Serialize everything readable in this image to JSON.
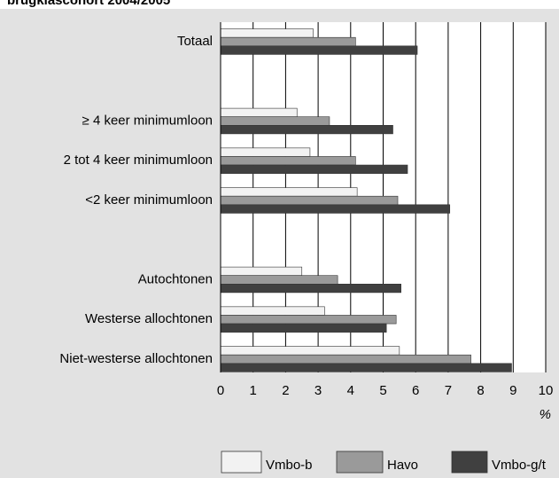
{
  "chart_data": {
    "type": "bar",
    "orientation": "horizontal",
    "title": "brugklascohort 2004/2005",
    "categories": [
      "Totaal",
      null,
      "≥ 4 keer minimumloon",
      "2 tot 4 keer minimumloon",
      "<2 keer minimumloon",
      null,
      "Autochtonen",
      "Westerse allochtonen",
      "Niet-westerse allochtonen"
    ],
    "series": [
      {
        "name": "Vmbo-b",
        "color": "#f2f2f2",
        "values": [
          2.85,
          null,
          2.35,
          2.75,
          4.2,
          null,
          2.5,
          3.2,
          5.5
        ]
      },
      {
        "name": "Havo",
        "color": "#9a9a9a",
        "values": [
          4.15,
          null,
          3.35,
          4.15,
          5.45,
          null,
          3.6,
          5.4,
          7.7
        ]
      },
      {
        "name": "Vmbo-g/t",
        "color": "#404040",
        "values": [
          6.05,
          null,
          5.3,
          5.75,
          7.05,
          null,
          5.55,
          5.1,
          8.95
        ]
      }
    ],
    "xlabel": "%",
    "xlim": [
      0,
      10
    ],
    "xticks": [
      0,
      1,
      2,
      3,
      4,
      5,
      6,
      7,
      8,
      9,
      10
    ],
    "grid": true,
    "legend": "bottom"
  }
}
